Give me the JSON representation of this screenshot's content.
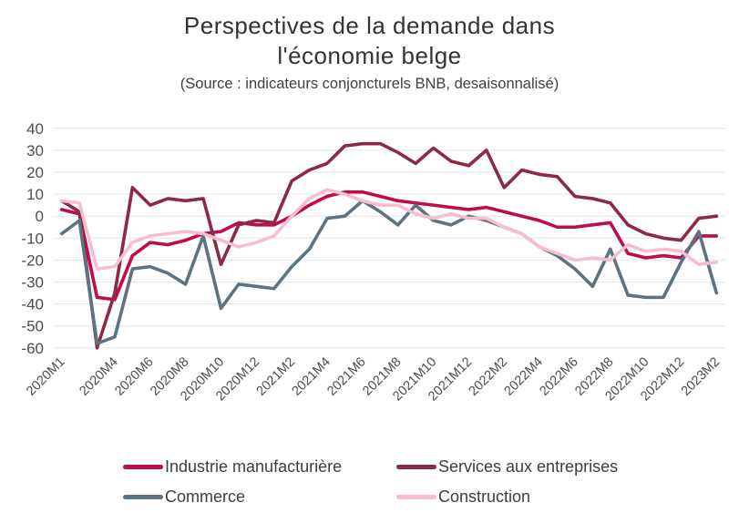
{
  "header": {
    "title_line1": "Perspectives de la demande dans",
    "title_line2": "l'économie belge",
    "subtitle": "(Source : indicateurs conjoncturels BNB, desaisonnalisé)"
  },
  "chart_data": {
    "type": "line",
    "title": "Perspectives de la demande dans l'économie belge",
    "subtitle": "(Source : indicateurs conjoncturels BNB, desaisonnalisé)",
    "xlabel": "",
    "ylabel": "",
    "ylim": [
      -60,
      40
    ],
    "ytick_step": 10,
    "grid": true,
    "legend_position": "bottom",
    "x": [
      "2020M1",
      "2020M2",
      "2020M3",
      "2020M4",
      "2020M5",
      "2020M6",
      "2020M7",
      "2020M8",
      "2020M9",
      "2020M10",
      "2020M11",
      "2020M12",
      "2021M1",
      "2021M2",
      "2021M3",
      "2021M4",
      "2021M5",
      "2021M6",
      "2021M7",
      "2021M8",
      "2021M9",
      "2021M10",
      "2021M11",
      "2021M12",
      "2022M1",
      "2022M2",
      "2022M3",
      "2022M4",
      "2022M5",
      "2022M6",
      "2022M7",
      "2022M8",
      "2022M9",
      "2022M10",
      "2022M11",
      "2022M12",
      "2023M1",
      "2023M2"
    ],
    "x_tick_indices": [
      0,
      3,
      5,
      7,
      9,
      11,
      13,
      15,
      17,
      19,
      21,
      23,
      25,
      27,
      29,
      31,
      33,
      35,
      37
    ],
    "x_tick_labels": [
      "2020M1",
      "2020M4",
      "2020M6",
      "2020M8",
      "2020M10",
      "2020M12",
      "2021M2",
      "2021M4",
      "2021M6",
      "2021M8",
      "2021M10",
      "2021M12",
      "2022M2",
      "2022M4",
      "2022M6",
      "2022M8",
      "2022M10",
      "2022M12",
      "2023M2"
    ],
    "y_tick_labels": [
      "40",
      "30",
      "20",
      "10",
      "0",
      "-10",
      "-20",
      "-30",
      "-40",
      "-50",
      "-60"
    ],
    "series": [
      {
        "name": "Industrie manufacturière",
        "color": "#C00C49",
        "values": [
          3,
          1,
          -37,
          -38,
          -18,
          -12,
          -13,
          -11,
          -8,
          -7,
          -3,
          -4,
          -4,
          0,
          5,
          9,
          11,
          11,
          9,
          7,
          6,
          5,
          4,
          3,
          4,
          2,
          0,
          -2,
          -5,
          -5,
          -4,
          -3,
          -17,
          -19,
          -18,
          -19,
          -9,
          -9
        ]
      },
      {
        "name": "Services aux entreprises",
        "color": "#8B2A42",
        "values": [
          7,
          2,
          -60,
          -35,
          13,
          5,
          8,
          7,
          8,
          -22,
          -4,
          -2,
          -3,
          16,
          21,
          24,
          32,
          33,
          33,
          29,
          24,
          31,
          25,
          23,
          30,
          13,
          21,
          19,
          18,
          9,
          8,
          6,
          -4,
          -8,
          -10,
          -11,
          -1,
          0
        ]
      },
      {
        "name": "Commerce",
        "color": "#5D7382",
        "values": [
          -8,
          -2,
          -58,
          -55,
          -24,
          -23,
          -26,
          -31,
          -9,
          -42,
          -31,
          -32,
          -33,
          -23,
          -15,
          -1,
          0,
          7,
          2,
          -4,
          5,
          -2,
          -4,
          0,
          -2,
          -5,
          -8,
          -14,
          -18,
          -24,
          -32,
          -15,
          -36,
          -37,
          -37,
          -21,
          -7,
          -35
        ]
      },
      {
        "name": "Construction",
        "color": "#F8BDD1",
        "values": [
          7,
          6,
          -24,
          -23,
          -12,
          -9,
          -8,
          -7,
          -8,
          -11,
          -14,
          -12,
          -9,
          0,
          8,
          12,
          10,
          7,
          5,
          5,
          1,
          -1,
          1,
          -1,
          -1,
          -5,
          -8,
          -14,
          -17,
          -20,
          -19,
          -20,
          -13,
          -16,
          -15,
          -16,
          -22,
          -21
        ]
      }
    ],
    "style": {
      "gridline_color": "#E2E6E9",
      "axis_label_color": "#4d4d4d",
      "line_width": 3.6
    }
  }
}
